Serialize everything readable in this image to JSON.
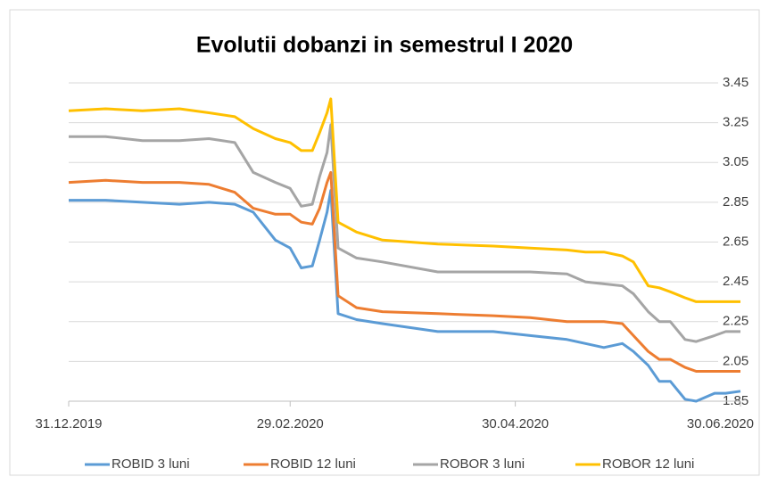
{
  "chart_data": {
    "type": "line",
    "title": "Evolutii dobanzi in semestrul I 2020",
    "x": [
      "31.12.2019",
      "10.01.2020",
      "20.01.2020",
      "30.01.2020",
      "07.02.2020",
      "14.02.2020",
      "19.02.2020",
      "25.02.2020",
      "29.02.2020",
      "03.03.2020",
      "06.03.2020",
      "08.03.2020",
      "10.03.2020",
      "11.03.2020",
      "13.03.2020",
      "18.03.2020",
      "25.03.2020",
      "09.04.2020",
      "24.04.2020",
      "04.05.2020",
      "14.05.2020",
      "19.05.2020",
      "24.05.2020",
      "29.05.2020",
      "01.06.2020",
      "05.06.2020",
      "08.06.2020",
      "11.06.2020",
      "15.06.2020",
      "18.06.2020",
      "23.06.2020",
      "26.06.2020",
      "30.06.2020"
    ],
    "series": [
      {
        "name": "ROBID 3 luni",
        "color": "#5b9bd5",
        "values": [
          2.86,
          2.86,
          2.85,
          2.84,
          2.85,
          2.84,
          2.8,
          2.66,
          2.62,
          2.52,
          2.53,
          2.66,
          2.8,
          2.91,
          2.29,
          2.26,
          2.24,
          2.2,
          2.2,
          2.18,
          2.16,
          2.14,
          2.12,
          2.14,
          2.1,
          2.03,
          1.95,
          1.95,
          1.86,
          1.85,
          1.89,
          1.89,
          1.9
        ]
      },
      {
        "name": "ROBID 12 luni",
        "color": "#ed7d31",
        "values": [
          2.95,
          2.96,
          2.95,
          2.95,
          2.94,
          2.9,
          2.82,
          2.79,
          2.79,
          2.75,
          2.74,
          2.82,
          2.95,
          3.0,
          2.38,
          2.32,
          2.3,
          2.29,
          2.28,
          2.27,
          2.25,
          2.25,
          2.25,
          2.24,
          2.18,
          2.1,
          2.06,
          2.06,
          2.02,
          2.0,
          2.0,
          2.0,
          2.0
        ]
      },
      {
        "name": "ROBOR 3 luni",
        "color": "#a5a5a5",
        "values": [
          3.18,
          3.18,
          3.16,
          3.16,
          3.17,
          3.15,
          3.0,
          2.95,
          2.92,
          2.83,
          2.84,
          2.98,
          3.1,
          3.24,
          2.62,
          2.57,
          2.55,
          2.5,
          2.5,
          2.5,
          2.49,
          2.45,
          2.44,
          2.43,
          2.39,
          2.3,
          2.25,
          2.25,
          2.16,
          2.15,
          2.18,
          2.2,
          2.2
        ]
      },
      {
        "name": "ROBOR 12 luni",
        "color": "#ffc000",
        "values": [
          3.31,
          3.32,
          3.31,
          3.32,
          3.3,
          3.28,
          3.22,
          3.17,
          3.15,
          3.11,
          3.11,
          3.2,
          3.3,
          3.37,
          2.75,
          2.7,
          2.66,
          2.64,
          2.63,
          2.62,
          2.61,
          2.6,
          2.6,
          2.58,
          2.55,
          2.43,
          2.42,
          2.4,
          2.37,
          2.35,
          2.35,
          2.35,
          2.35
        ]
      }
    ],
    "xlim": [
      "31.12.2019",
      "30.06.2020"
    ],
    "xticks": [
      "31.12.2019",
      "29.02.2020",
      "30.04.2020",
      "30.06.2020"
    ],
    "ylim": [
      1.85,
      3.45
    ],
    "yticks": [
      1.85,
      2.05,
      2.25,
      2.45,
      2.65,
      2.85,
      3.05,
      3.25,
      3.45
    ],
    "grid": true,
    "legend": "bottom"
  }
}
